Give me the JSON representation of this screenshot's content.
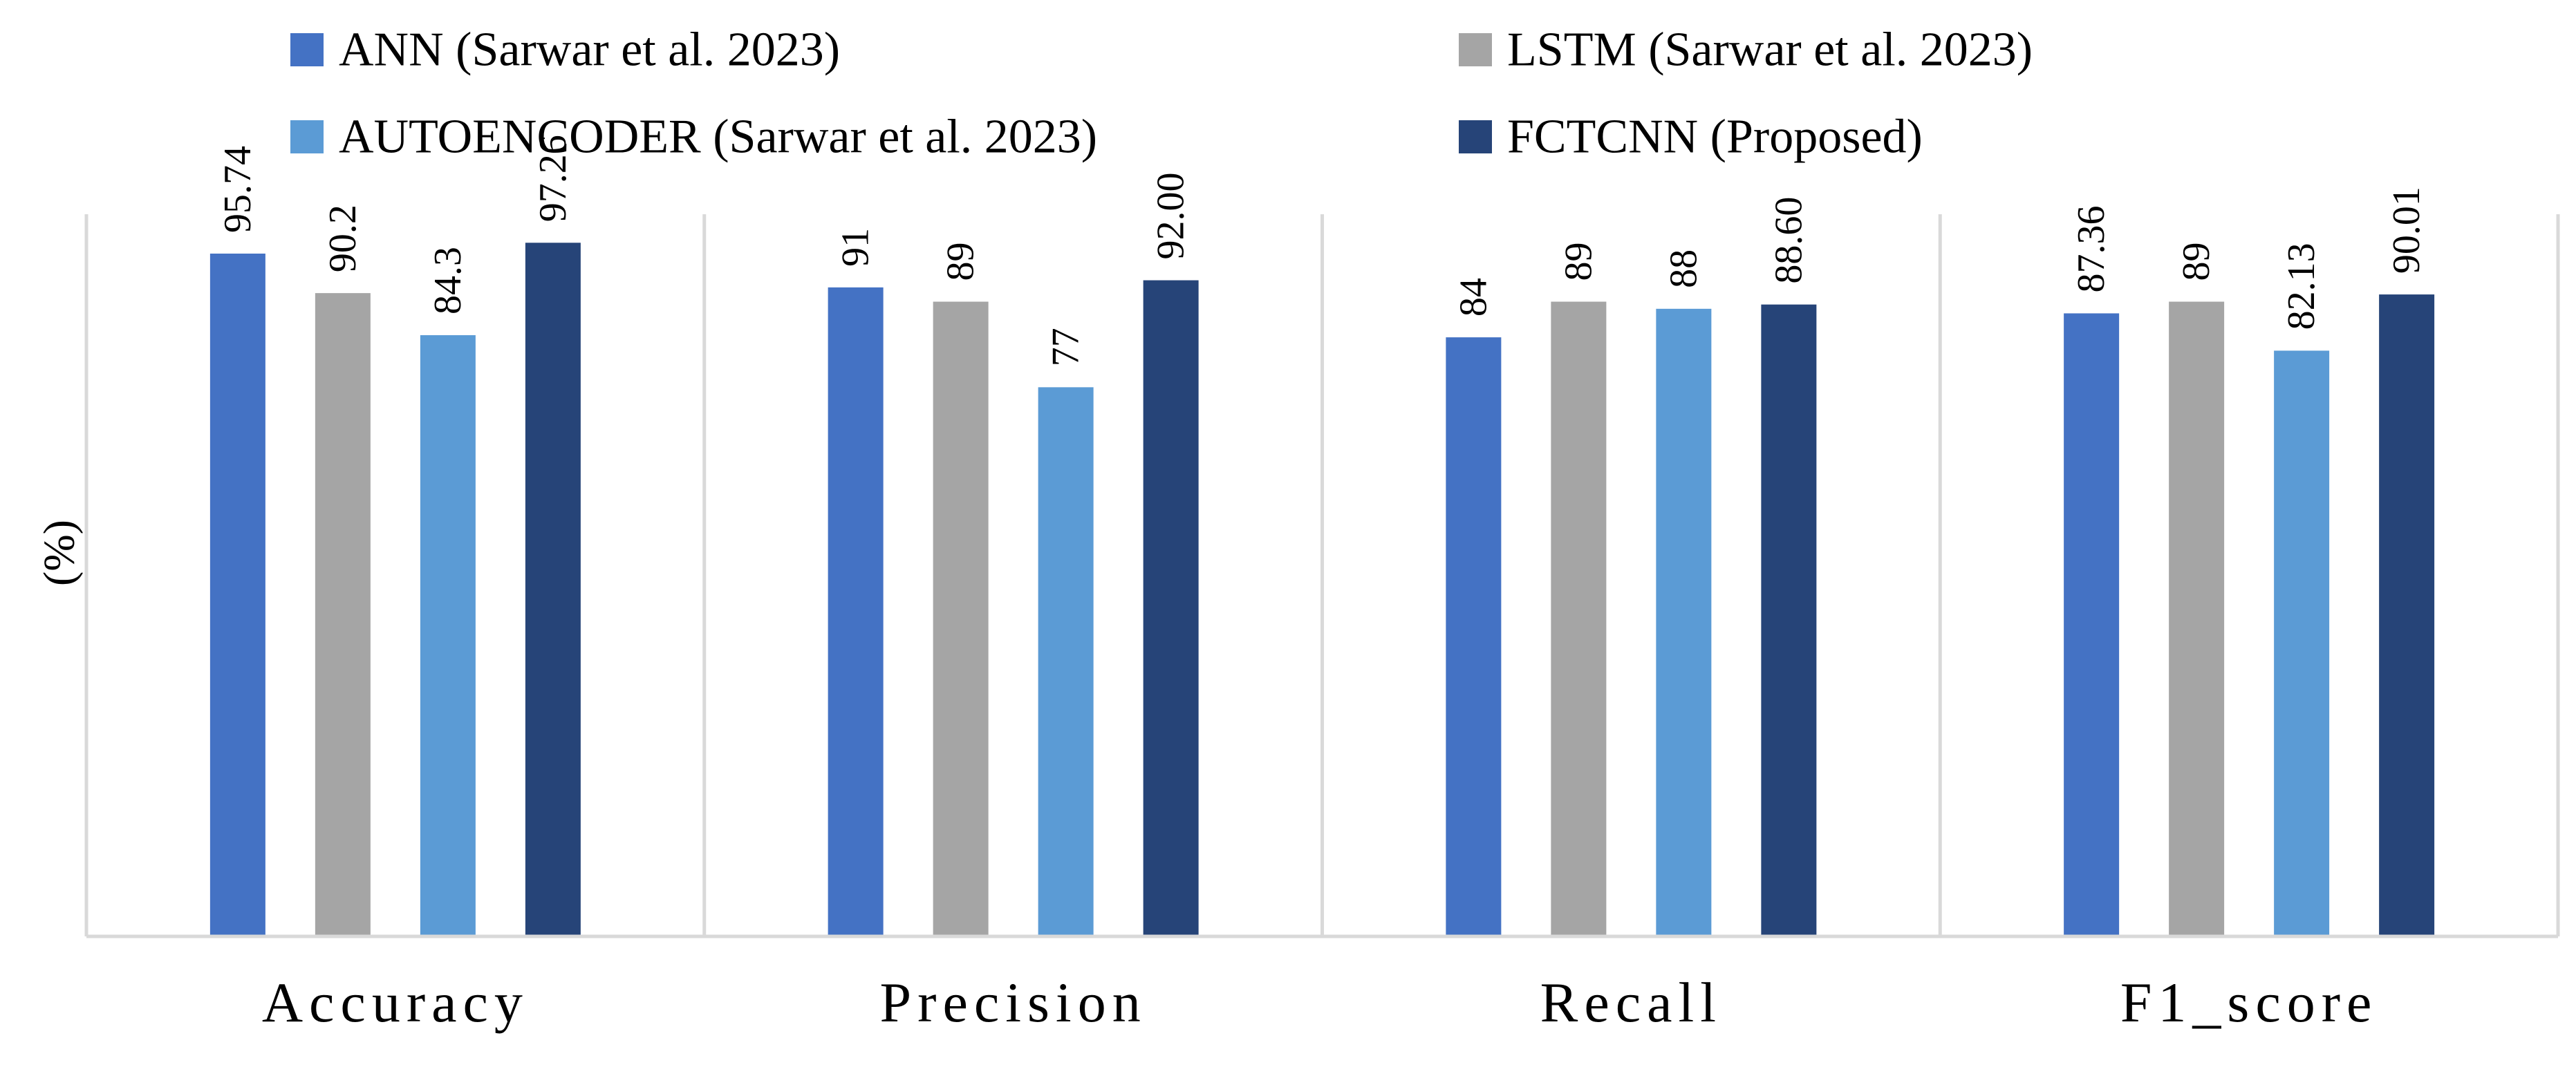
{
  "chart_data": {
    "type": "bar",
    "title": "",
    "xlabel": "",
    "ylabel": "(%)",
    "ylim": [
      0,
      100
    ],
    "grid": false,
    "legend_position": "top",
    "categories": [
      "Accuracy",
      "Precision",
      "Recall",
      "F1_score"
    ],
    "series": [
      {
        "name": "ANN (Sarwar et al. 2023)",
        "color": "#4472C4",
        "values": [
          95.74,
          91,
          84,
          87.36
        ],
        "labels": [
          "95.74",
          "91",
          "84",
          "87.36"
        ]
      },
      {
        "name": "LSTM (Sarwar et al. 2023)",
        "color": "#A5A5A5",
        "values": [
          90.2,
          89,
          89,
          89
        ],
        "labels": [
          "90.2",
          "89",
          "89",
          "89"
        ]
      },
      {
        "name": "AUTOENCODER (Sarwar et al. 2023)",
        "color": "#5B9BD5",
        "values": [
          84.3,
          77,
          88,
          82.13
        ],
        "labels": [
          "84.3",
          "77",
          "88",
          "82.13"
        ]
      },
      {
        "name": "FCTCNN (Proposed)",
        "color": "#264478",
        "values": [
          97.26,
          92.0,
          88.6,
          90.01
        ],
        "labels": [
          "97.26",
          "92.00",
          "88.60",
          "90.01"
        ]
      }
    ]
  }
}
